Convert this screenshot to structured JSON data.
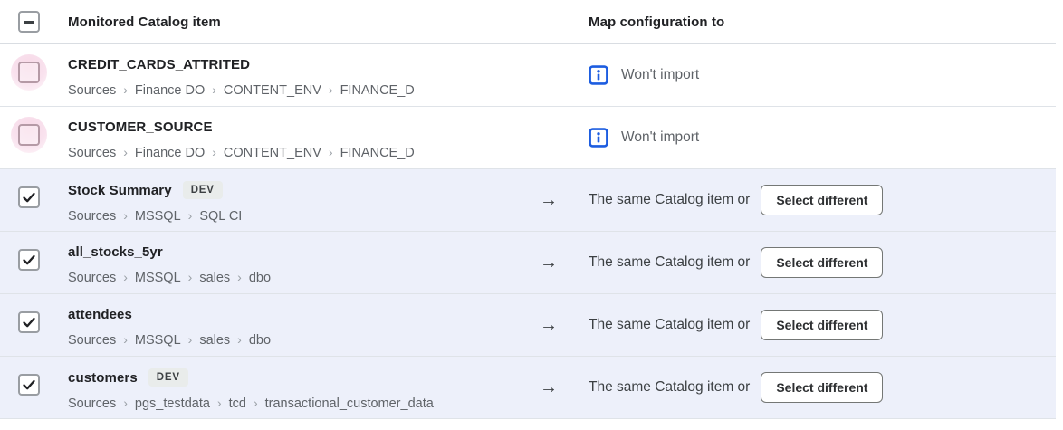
{
  "table": {
    "columns": {
      "item": "Monitored Catalog item",
      "map": "Map configuration to"
    },
    "header_checkbox_state": "indeterminate",
    "breadcrumb_separator": "›",
    "arrow_glyph": "→",
    "colors": {
      "info_blue": "#1d5de0",
      "selected_row_background": "#edf0fa",
      "disabled_checkbox_halo_pink": "#f7d9e7",
      "badge_background": "#e9eceb"
    },
    "rows": [
      {
        "title": "CREDIT_CARDS_ATTRITED",
        "badge": null,
        "path": [
          "Sources",
          "Finance DO",
          "CONTENT_ENV",
          "FINANCE_D"
        ],
        "checkbox": "pink-unchecked",
        "selected": false,
        "map": {
          "type": "wont_import",
          "label": "Won't import"
        }
      },
      {
        "title": "CUSTOMER_SOURCE",
        "badge": null,
        "path": [
          "Sources",
          "Finance DO",
          "CONTENT_ENV",
          "FINANCE_D"
        ],
        "checkbox": "pink-unchecked",
        "selected": false,
        "map": {
          "type": "wont_import",
          "label": "Won't import"
        }
      },
      {
        "title": "Stock Summary",
        "badge": "DEV",
        "path": [
          "Sources",
          "MSSQL",
          "SQL CI"
        ],
        "checkbox": "checked",
        "selected": true,
        "map": {
          "type": "same_or",
          "label": "The same Catalog item or",
          "button": "Select different"
        }
      },
      {
        "title": "all_stocks_5yr",
        "badge": null,
        "path": [
          "Sources",
          "MSSQL",
          "sales",
          "dbo"
        ],
        "checkbox": "checked",
        "selected": true,
        "map": {
          "type": "same_or",
          "label": "The same Catalog item or",
          "button": "Select different"
        }
      },
      {
        "title": "attendees",
        "badge": null,
        "path": [
          "Sources",
          "MSSQL",
          "sales",
          "dbo"
        ],
        "checkbox": "checked",
        "selected": true,
        "map": {
          "type": "same_or",
          "label": "The same Catalog item or",
          "button": "Select different"
        }
      },
      {
        "title": "customers",
        "badge": "DEV",
        "path": [
          "Sources",
          "pgs_testdata",
          "tcd",
          "transactional_customer_data"
        ],
        "checkbox": "checked",
        "selected": true,
        "map": {
          "type": "same_or",
          "label": "The same Catalog item or",
          "button": "Select different"
        }
      }
    ]
  }
}
